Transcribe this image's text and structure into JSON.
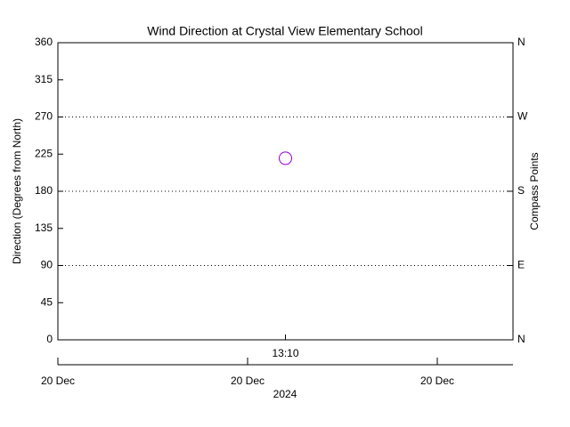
{
  "chart_data": {
    "type": "scatter",
    "title": "Wind Direction at Crystal View Elementary School",
    "ylabel": "Direction (Degrees from North)",
    "y2label": "Compass Points",
    "x": [
      "13:10"
    ],
    "values": [
      220
    ],
    "color": "#9400d3",
    "ylim": [
      0,
      360
    ],
    "yticks": [
      0,
      45,
      90,
      135,
      180,
      225,
      270,
      315,
      360
    ],
    "y2lim": [
      0,
      360
    ],
    "y2ticks": [
      {
        "value": 0,
        "label": "N"
      },
      {
        "value": 90,
        "label": "E"
      },
      {
        "value": 180,
        "label": "S"
      },
      {
        "value": 270,
        "label": "W"
      },
      {
        "value": 360,
        "label": "N"
      }
    ],
    "grid": true,
    "date_ticks": [
      "20 Dec",
      "20 Dec",
      "20 Dec"
    ],
    "date_year": "2024"
  }
}
